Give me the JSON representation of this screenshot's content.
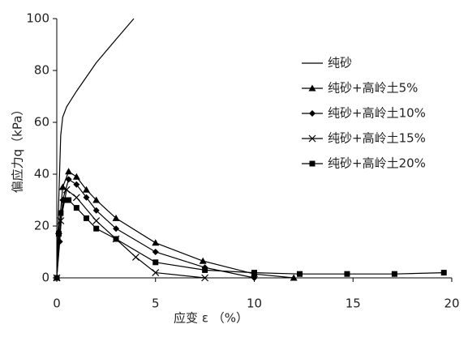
{
  "chart_data": {
    "type": "line",
    "x_label": "应变 ε （%）",
    "y_label": "偏应力q（kPa）",
    "xlim": [
      0,
      20
    ],
    "ylim": [
      0,
      100
    ],
    "xticks": [
      0,
      5,
      10,
      15,
      20
    ],
    "yticks": [
      0,
      20,
      40,
      60,
      80,
      100
    ],
    "grid": false,
    "legend": "upper right",
    "series": [
      {
        "name": "纯砂",
        "color": "#000000",
        "marker": "none",
        "x": [
          0,
          0.1,
          0.2,
          0.3,
          0.5,
          1,
          2,
          3,
          3.9
        ],
        "values": [
          0,
          30,
          55,
          62,
          66,
          72,
          83,
          92,
          100
        ]
      },
      {
        "name": "纯砂+高岭土5%",
        "color": "#000000",
        "marker": "triangle",
        "x": [
          0,
          0.1,
          0.3,
          0.6,
          1,
          1.5,
          2,
          3,
          5,
          7.4,
          10,
          12
        ],
        "values": [
          0,
          18,
          35,
          41,
          39,
          34,
          30,
          23,
          13.5,
          6.5,
          1.5,
          0
        ]
      },
      {
        "name": "纯砂+高岭土10%",
        "color": "#000000",
        "marker": "diamond",
        "x": [
          0,
          0.15,
          0.3,
          0.6,
          1,
          1.5,
          2,
          3,
          5,
          7.5,
          10
        ],
        "values": [
          0,
          14,
          30,
          38,
          36,
          31,
          26,
          19,
          10,
          4,
          0
        ]
      },
      {
        "name": "纯砂+高岭土15%",
        "color": "#000000",
        "marker": "x",
        "x": [
          0,
          0.2,
          0.5,
          1,
          2,
          3,
          4,
          5,
          7.5
        ],
        "values": [
          0,
          22,
          34,
          31,
          22,
          15,
          8,
          2,
          0
        ]
      },
      {
        "name": "纯砂+高岭土20%",
        "color": "#000000",
        "marker": "square",
        "x": [
          0,
          0.1,
          0.2,
          0.4,
          0.6,
          1,
          1.5,
          2,
          3,
          5,
          7.5,
          10,
          12.3,
          14.7,
          17.1,
          19.6
        ],
        "values": [
          0,
          17,
          25,
          30,
          30,
          27,
          23,
          19,
          15,
          6,
          3,
          2,
          1.5,
          1.5,
          1.5,
          2
        ]
      }
    ]
  }
}
